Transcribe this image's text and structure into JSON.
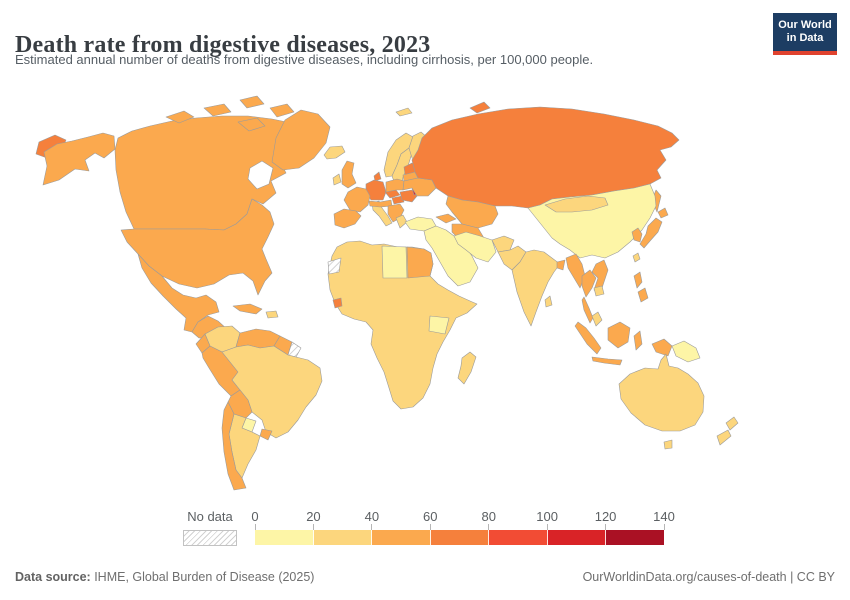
{
  "header": {
    "title": "Death rate from digestive diseases, 2023",
    "subtitle": "Estimated annual number of deaths from digestive diseases, including cirrhosis, per 100,000 people.",
    "logo": {
      "line1": "Our World",
      "line2": "in Data",
      "bg": "#1d3d63",
      "accent": "#e0422e"
    }
  },
  "legend": {
    "no_data_label": "No data",
    "ticks": [
      "0",
      "20",
      "40",
      "60",
      "80",
      "100",
      "120",
      "140"
    ],
    "bins": [
      {
        "range": "0-20",
        "color": "#FDF5A6"
      },
      {
        "range": "20-40",
        "color": "#FCD67D"
      },
      {
        "range": "40-60",
        "color": "#FBA94E"
      },
      {
        "range": "60-80",
        "color": "#F5803C"
      },
      {
        "range": "80-100",
        "color": "#F24C34"
      },
      {
        "range": "100-120",
        "color": "#D92327"
      },
      {
        "range": "120-140",
        "color": "#AA1124"
      }
    ]
  },
  "footer": {
    "source_label": "Data source:",
    "source_value": " IHME, Global Burden of Disease (2025)",
    "right_text": "OurWorldinData.org/causes-of-death | CC BY"
  },
  "map": {
    "border_color": "#9b9b9b",
    "water_color": "#ffffff",
    "bin_colors": {
      "b0": "#FDF5A6",
      "b1": "#FCD67D",
      "b2": "#FBA94E",
      "b3": "#F5803C",
      "b4": "#F24C34",
      "b5": "#D92327",
      "b6": "#AA1124"
    },
    "countries": {
      "chukotka": "b3",
      "alaska": "b2",
      "canada": "b2",
      "canadian-arctic": "b2",
      "greenland": "b2",
      "iceland": "b1",
      "usa": "b2",
      "mexico": "b2",
      "central-america": "b2",
      "cuba": "b2",
      "hispaniola": "b1",
      "colombia": "b1",
      "venezuela": "b2",
      "guyana-suriname": "b2",
      "french-guiana": "nodata",
      "ecuador": "b2",
      "peru": "b2",
      "brazil": "b1",
      "bolivia": "b2",
      "paraguay": "b0",
      "uruguay": "b2",
      "argentina": "b1",
      "chile": "b2",
      "africa": "b1",
      "libya": "b0",
      "egypt": "b2",
      "kenya-uganda": "b0",
      "sierra-leone": "b3",
      "western-sahara": "nodata",
      "madagascar": "b1",
      "uk": "b2",
      "ireland": "b1",
      "norway": "b1",
      "sweden": "b1",
      "finland": "b1",
      "denmark": "b3",
      "baltic-states": "b3",
      "germany": "b3",
      "france": "b2",
      "iberia": "b2",
      "italy": "b1",
      "austria-swiss": "b2",
      "czechia-slovakia": "b3",
      "poland": "b2",
      "hungary": "b3",
      "balkans": "b2",
      "greece": "b1",
      "romania": "b3",
      "moldova": "b5",
      "belarus": "b2",
      "ukraine": "b2",
      "russia": "b3",
      "novaya-zemlya": "b3",
      "svalbard": "b1",
      "sakhalin": "b2",
      "turkey": "b0",
      "caucasus": "b2",
      "kazakhstan": "b2",
      "central-asia": "b2",
      "middle-east": "b0",
      "iran": "b0",
      "afghanistan": "b1",
      "pakistan": "b1",
      "india": "b1",
      "sri-lanka": "b1",
      "bangladesh": "b2",
      "china": "b0",
      "mongolia": "b1",
      "korea": "b2",
      "japan": "b2",
      "taiwan": "b1",
      "myanmar": "b2",
      "thailand": "b2",
      "malay-peninsula": "b2",
      "laos-vietnam": "b2",
      "cambodia": "b1",
      "malaysia": "b1",
      "sumatra": "b2",
      "java": "b2",
      "borneo": "b2",
      "sulawesi": "b2",
      "philippines": "b2",
      "west-papua": "b2",
      "png": "b0",
      "australia": "b1",
      "tasmania": "b1",
      "new-zealand": "b1"
    }
  },
  "chart_data": {
    "type": "choropleth-map",
    "title": "Death rate from digestive diseases, 2023",
    "unit": "deaths per 100,000 people",
    "year": 2023,
    "legend_ticks": [
      0,
      20,
      40,
      60,
      80,
      100,
      120,
      140
    ],
    "legend_colors": [
      "#FDF5A6",
      "#FCD67D",
      "#FBA94E",
      "#F5803C",
      "#F24C34",
      "#D92327",
      "#AA1124"
    ],
    "no_data_style": "gray diagonal hatching",
    "regions": {
      "United States": "40-60",
      "Canada": "40-60",
      "Greenland": "40-60",
      "Mexico": "40-60",
      "Central America": "40-60",
      "Cuba": "40-60",
      "Haiti/Dominican Rep.": "20-40",
      "Colombia": "20-40",
      "Venezuela": "40-60",
      "Guyana/Suriname": "40-60",
      "French Guiana": "No data",
      "Ecuador": "40-60",
      "Peru": "40-60",
      "Bolivia": "40-60",
      "Brazil": "20-40",
      "Paraguay": "0-20",
      "Uruguay": "40-60",
      "Argentina": "20-40",
      "Chile": "40-60",
      "Iceland": "20-40",
      "United Kingdom": "40-60",
      "Ireland": "20-40",
      "Norway": "20-40",
      "Sweden": "20-40",
      "Finland": "20-40",
      "Denmark": "60-80",
      "Germany": "60-80",
      "France": "40-60",
      "Spain/Portugal": "40-60",
      "Italy": "20-40",
      "Poland": "40-60",
      "Czechia/Slovakia": "60-80",
      "Austria/Switzerland": "40-60",
      "Hungary": "60-80",
      "Romania": "60-80",
      "Moldova": "100-120",
      "Ukraine": "40-60",
      "Belarus": "40-60",
      "Baltic states": "60-80",
      "Balkans": "40-60",
      "Greece": "20-40",
      "Russia": "60-80",
      "Turkey": "0-20",
      "Caucasus": "40-60",
      "Kazakhstan": "40-60",
      "Central Asia": "40-60",
      "Middle East / Arabian Peninsula": "0-20",
      "Iran": "0-20",
      "Afghanistan": "20-40",
      "Pakistan": "20-40",
      "India": "20-40",
      "Sri Lanka": "20-40",
      "Bangladesh": "40-60",
      "China": "0-20",
      "Mongolia": "20-40",
      "Korea": "40-60",
      "Japan": "40-60",
      "Taiwan": "20-40",
      "Myanmar": "40-60",
      "Thailand": "40-60",
      "Laos/Vietnam": "40-60",
      "Cambodia": "20-40",
      "Malaysia": "20-40",
      "Indonesia": "40-60",
      "Philippines": "40-60",
      "Papua New Guinea": "0-20",
      "Australia": "20-40",
      "New Zealand": "20-40",
      "North Africa (Morocco/Algeria/Tunisia)": "20-40",
      "Libya": "0-20",
      "Egypt": "40-60",
      "West & Central Africa": "20-40",
      "Sierra Leone": "60-80",
      "Kenya/Uganda": "0-20",
      "Ethiopia/Somalia": "20-40",
      "Southern Africa": "20-40",
      "Madagascar": "20-40",
      "Western Sahara": "No data"
    }
  }
}
